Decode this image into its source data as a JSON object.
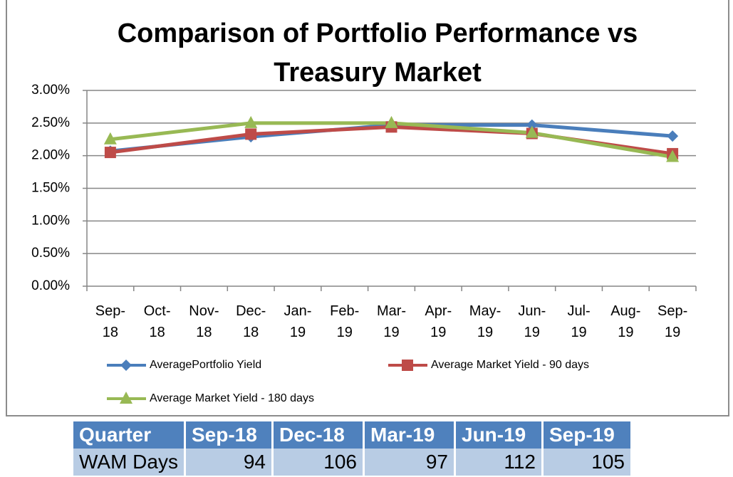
{
  "chart_data": {
    "type": "line",
    "title": "Comparison of Portfolio Performance vs Treasury Market",
    "xticks": [
      "Sep-18",
      "Oct-18",
      "Nov-18",
      "Dec-18",
      "Jan-19",
      "Feb-19",
      "Mar-19",
      "Apr-19",
      "May-19",
      "Jun-19",
      "Jul-19",
      "Aug-19",
      "Sep-19"
    ],
    "x": [
      "Sep-18",
      "Dec-18",
      "Mar-19",
      "Jun-19",
      "Sep-19"
    ],
    "series": [
      {
        "name": "AveragePortfolio Yield",
        "color": "#4a7ebb",
        "marker": "diamond",
        "values": [
          2.07,
          2.29,
          2.47,
          2.47,
          2.3
        ]
      },
      {
        "name": "Average Market Yield - 90 days",
        "color": "#be4b48",
        "marker": "square",
        "values": [
          2.05,
          2.33,
          2.44,
          2.34,
          2.03
        ]
      },
      {
        "name": "Average Market Yield - 180 days",
        "color": "#98b954",
        "marker": "triangle",
        "values": [
          2.25,
          2.5,
          2.5,
          2.35,
          1.98
        ]
      }
    ],
    "ylim": [
      0,
      3
    ],
    "yticks": [
      {
        "value": 0,
        "label": "0.00%"
      },
      {
        "value": 0.5,
        "label": "0.50%"
      },
      {
        "value": 1,
        "label": "1.00%"
      },
      {
        "value": 1.5,
        "label": "1.50%"
      },
      {
        "value": 2,
        "label": "2.00%"
      },
      {
        "value": 2.5,
        "label": "2.50%"
      },
      {
        "value": 3,
        "label": "3.00%"
      }
    ],
    "grid": true,
    "legend": "bottom"
  },
  "table": {
    "header": [
      "Quarter",
      "Sep-18",
      "Dec-18",
      "Mar-19",
      "Jun-19",
      "Sep-19"
    ],
    "rows": [
      [
        "WAM Days",
        "94",
        "106",
        "97",
        "112",
        "105"
      ]
    ]
  }
}
